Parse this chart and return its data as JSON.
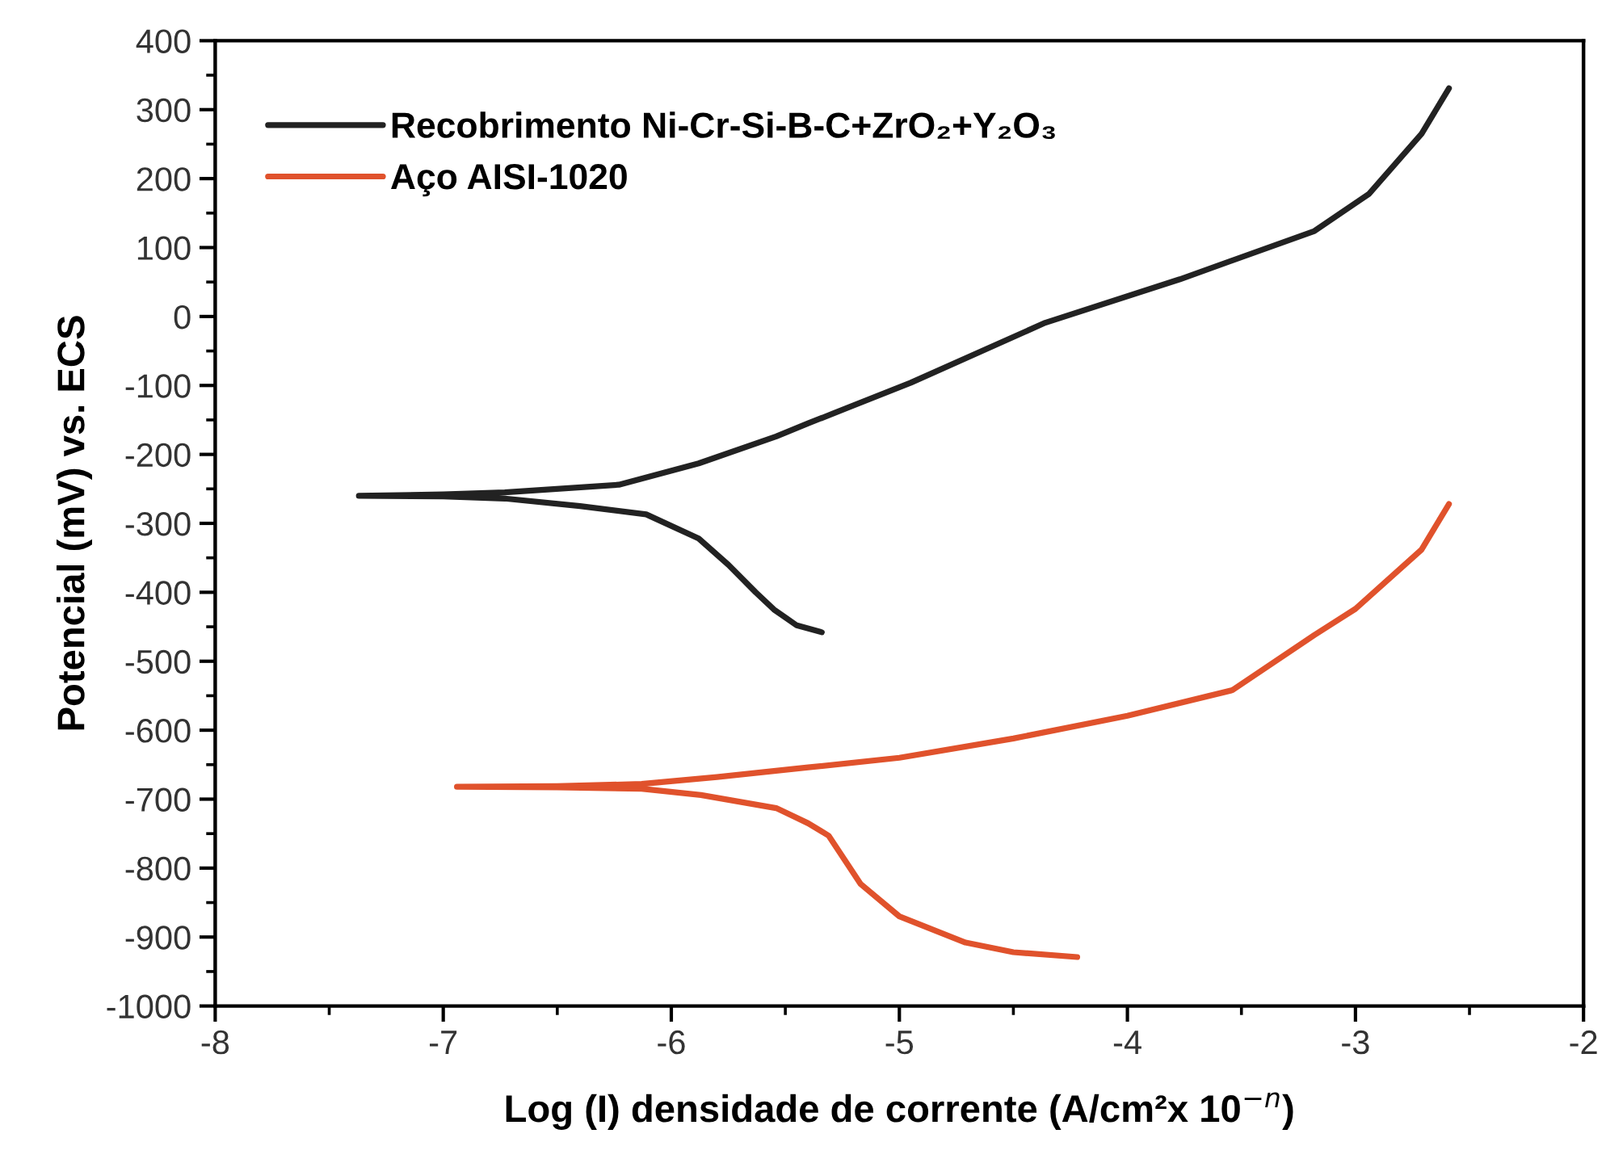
{
  "chart_data": {
    "type": "line",
    "xlabel": "Log (I) densidade de corrente (A/cm²x 10$^{−n}$)",
    "ylabel": "Potencial (mV) vs. ECS",
    "xlim": [
      -8,
      -2
    ],
    "xticks": [
      -8,
      -7,
      -6,
      -5,
      -4,
      -3,
      -2
    ],
    "ylim": [
      -1000,
      400
    ],
    "yticks": [
      -1000,
      -900,
      -800,
      -700,
      -600,
      -500,
      -400,
      -300,
      -200,
      -100,
      0,
      100,
      200,
      300,
      400
    ],
    "grid": false,
    "legend": "top left",
    "marker": "none",
    "line_style": "solid",
    "series": [
      {
        "name": "Recobrimento Ni-Cr-Si-B-C+ZrO₂+Y₂O₃",
        "color": "#222222",
        "x": [
          -5.34,
          -5.45,
          -5.55,
          -5.63,
          -5.75,
          -5.88,
          -6.11,
          -6.4,
          -6.73,
          -7.0,
          -7.37,
          -7.0,
          -6.73,
          -6.23,
          -5.88,
          -5.54,
          -5.4,
          -4.95,
          -4.36,
          -3.77,
          -3.18,
          -2.94,
          -2.71,
          -2.59
        ],
        "values": [
          -458,
          -448,
          -425,
          -400,
          -360,
          -322,
          -287,
          -275,
          -264,
          -261,
          -260,
          -258,
          -255,
          -244,
          -213,
          -174,
          -155,
          -96,
          -9,
          54,
          124,
          178,
          265,
          331
        ]
      },
      {
        "name": "Aço AISI-1020",
        "color": "#e0522c",
        "x": [
          -4.22,
          -4.5,
          -4.71,
          -5.0,
          -5.17,
          -5.31,
          -5.4,
          -5.54,
          -5.87,
          -6.13,
          -6.5,
          -6.94,
          -6.5,
          -6.13,
          -5.8,
          -5.4,
          -5.0,
          -4.5,
          -4.0,
          -3.54,
          -3.18,
          -3.0,
          -2.71,
          -2.59
        ],
        "values": [
          -929,
          -922,
          -908,
          -870,
          -823,
          -753,
          -735,
          -713,
          -694,
          -685,
          -683,
          -682,
          -681,
          -678,
          -668,
          -654,
          -640,
          -612,
          -579,
          -542,
          -462,
          -424,
          -338,
          -272
        ]
      }
    ]
  }
}
